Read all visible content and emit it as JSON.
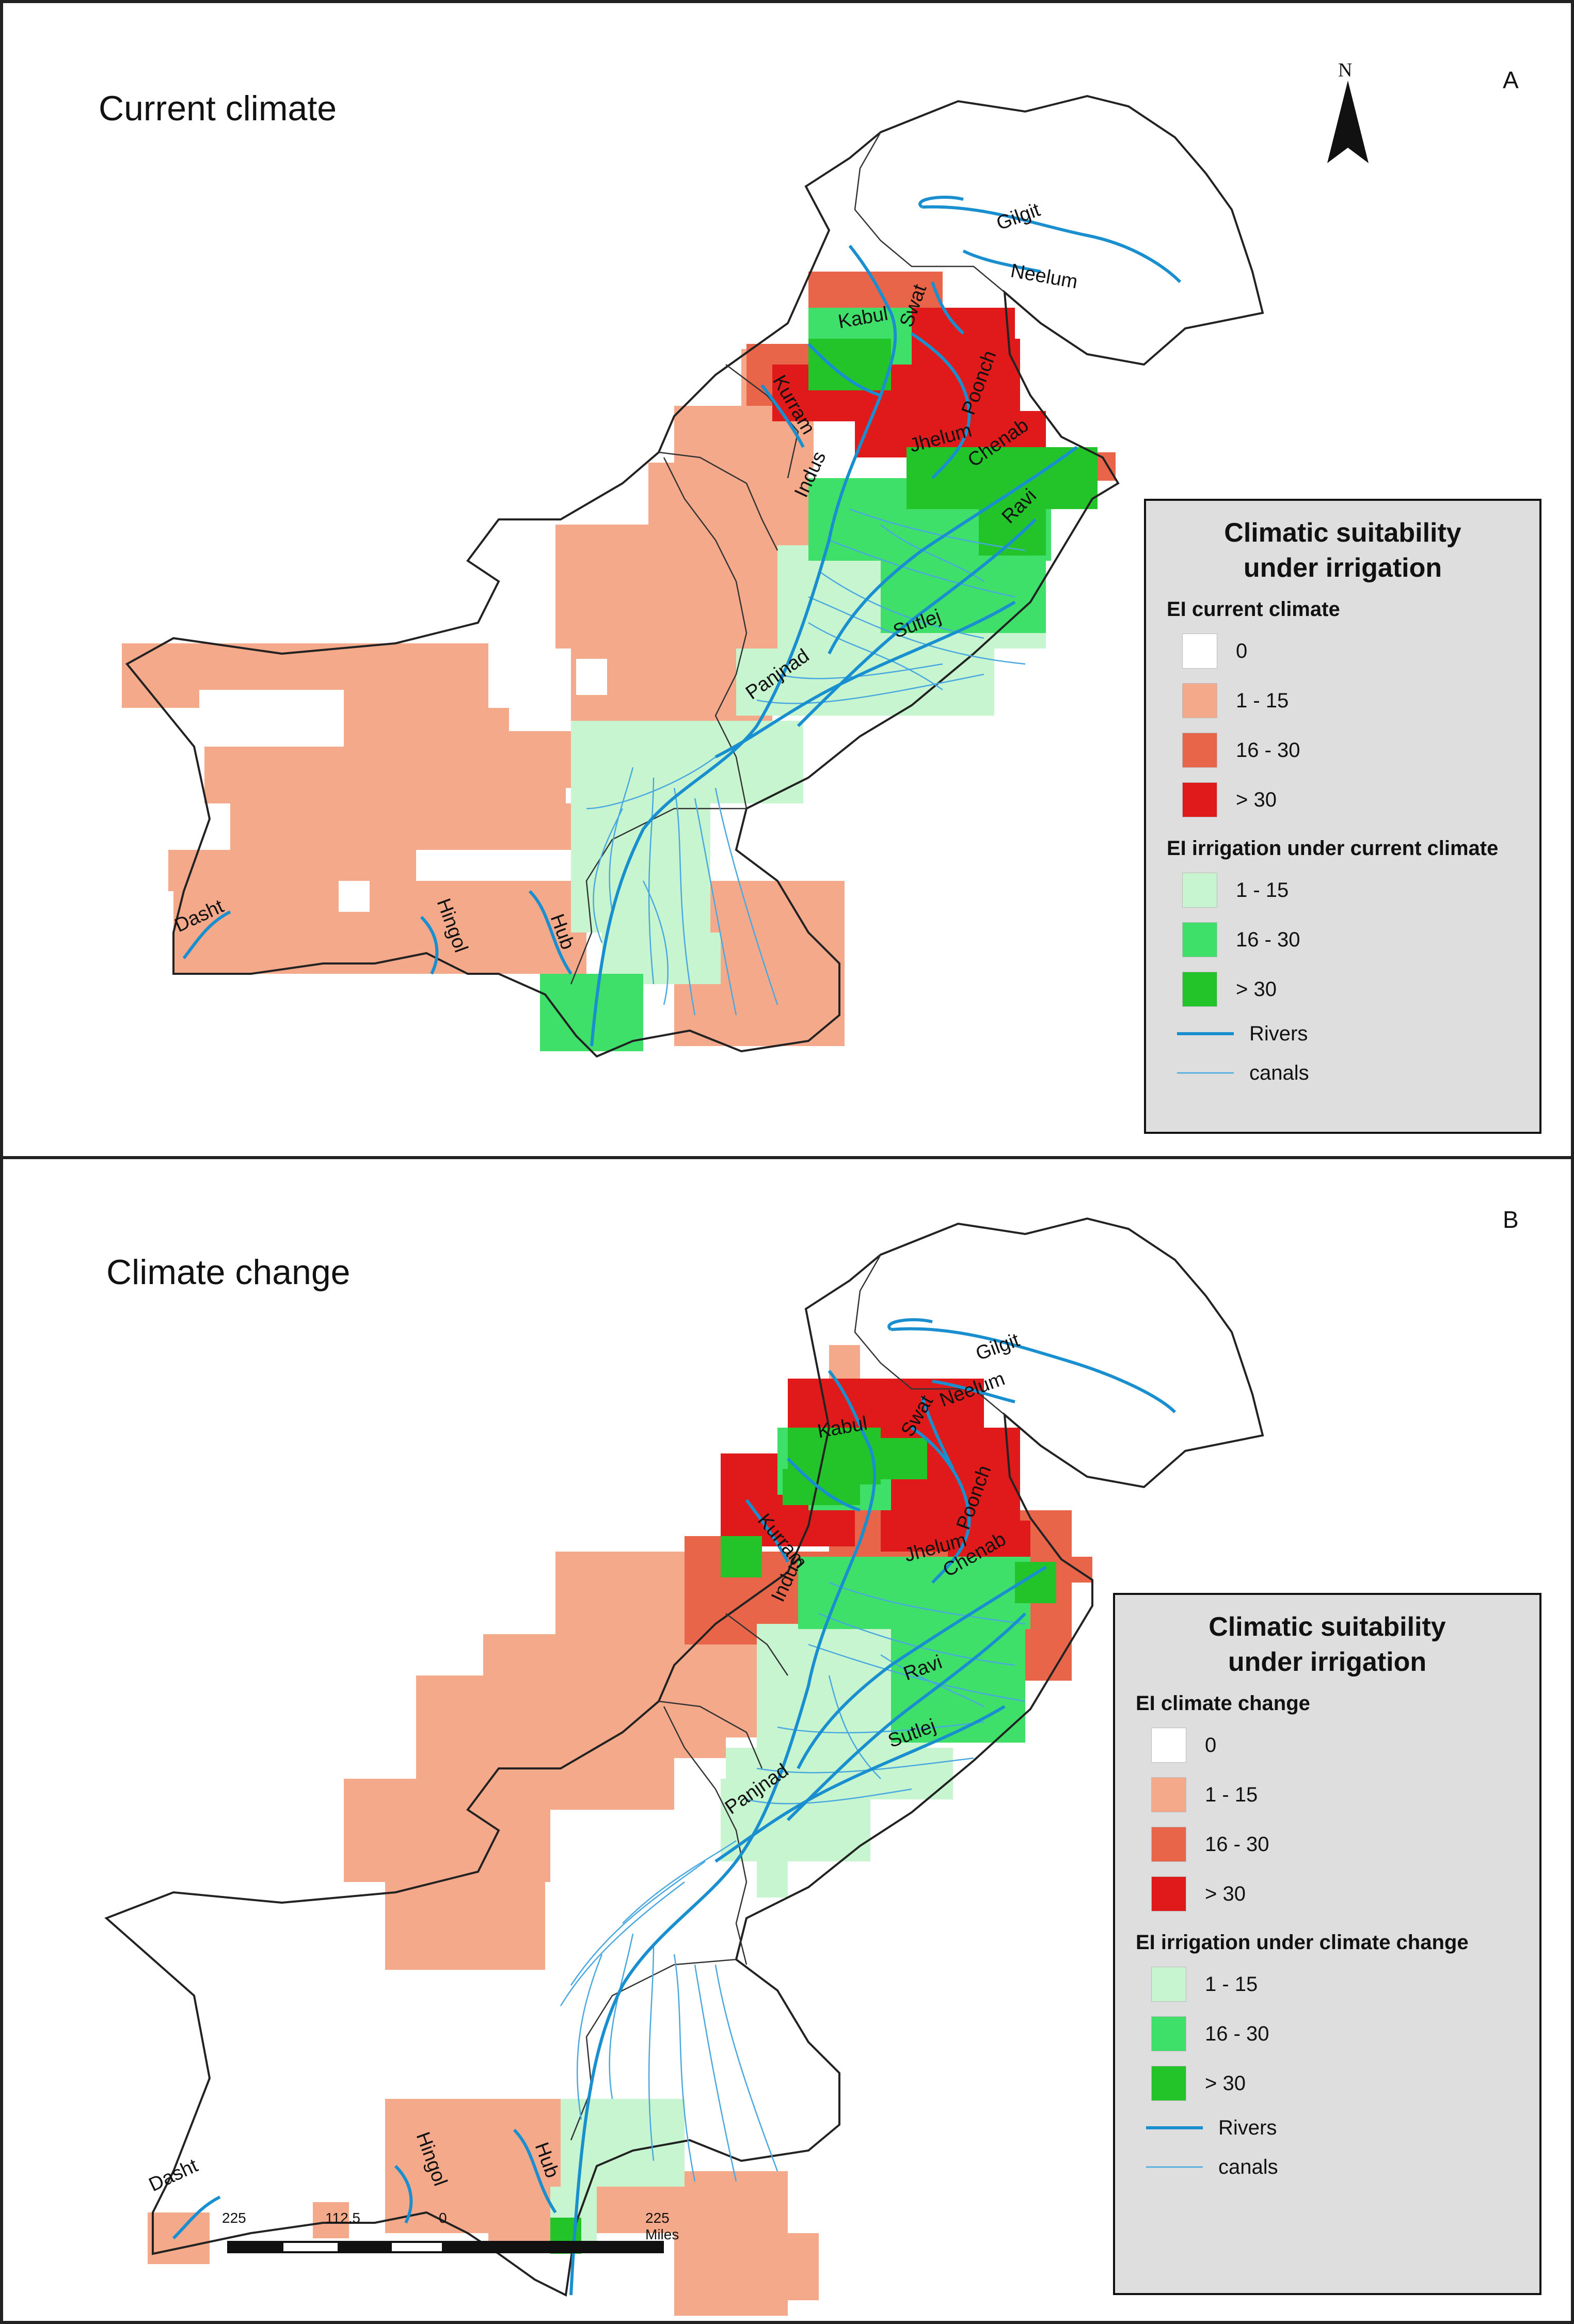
{
  "panels": [
    {
      "letter": "A",
      "title": "Current climate",
      "legend": {
        "title_line1": "Climatic suitability",
        "title_line2": "under irrigation",
        "group1_title": "EI current climate",
        "group1_items": [
          {
            "label": "0",
            "color": "#ffffff"
          },
          {
            "label": "1 - 15",
            "color": "#f4a98a"
          },
          {
            "label": "16 - 30",
            "color": "#e8654a"
          },
          {
            "label": "> 30",
            "color": "#e01a1a"
          }
        ],
        "group2_title": "EI irrigation under current climate",
        "group2_items": [
          {
            "label": "1 - 15",
            "color": "#c7f5cf"
          },
          {
            "label": "16 - 30",
            "color": "#3fe06a"
          },
          {
            "label": "> 30",
            "color": "#22c42a"
          }
        ],
        "rivers_label": "Rivers",
        "canals_label": "canals"
      },
      "rivers": [
        "Gilgit",
        "Neelum",
        "Swat",
        "Kabul",
        "Poonch",
        "Kurram",
        "Jhelum",
        "Chenab",
        "Indus",
        "Ravi",
        "Sutlej",
        "Panjnad",
        "Hub",
        "Hingol",
        "Dasht"
      ]
    },
    {
      "letter": "B",
      "title": "Climate change",
      "legend": {
        "title_line1": "Climatic suitability",
        "title_line2": "under irrigation",
        "group1_title": "EI climate change",
        "group1_items": [
          {
            "label": "0",
            "color": "#ffffff"
          },
          {
            "label": "1 - 15",
            "color": "#f4a98a"
          },
          {
            "label": "16 - 30",
            "color": "#e8654a"
          },
          {
            "label": "> 30",
            "color": "#e01a1a"
          }
        ],
        "group2_title": "EI irrigation under climate change",
        "group2_items": [
          {
            "label": "1 - 15",
            "color": "#c7f5cf"
          },
          {
            "label": "16 - 30",
            "color": "#3fe06a"
          },
          {
            "label": "> 30",
            "color": "#22c42a"
          }
        ],
        "rivers_label": "Rivers",
        "canals_label": "canals"
      },
      "rivers": [
        "Gilgit",
        "Neelum",
        "Swat",
        "Kabul",
        "Poonch",
        "Kurram",
        "Jhelum",
        "Chenab",
        "Indus",
        "Ravi",
        "Sutlej",
        "Panjnad",
        "Hub",
        "Hingol",
        "Dasht"
      ]
    }
  ],
  "north_label": "N",
  "scale_bar": {
    "ticks": [
      "225",
      "112.5",
      "0",
      "225 Miles"
    ]
  },
  "colors": {
    "river": "#1a8fd0",
    "canal": "#4aa8e0",
    "boundary": "#222222"
  }
}
